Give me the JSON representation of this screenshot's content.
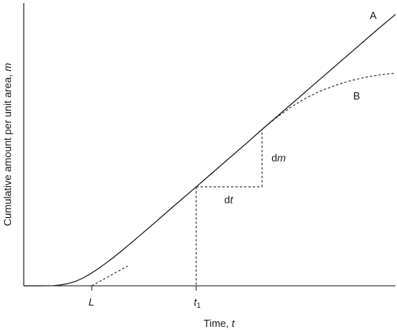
{
  "chart_data": {
    "type": "line",
    "xlabel": {
      "text": "Time, ",
      "var": "t"
    },
    "ylabel": {
      "text": "Cumulative amount per unit area, ",
      "var": "m"
    },
    "xlim": [
      0,
      100
    ],
    "ylim": [
      0,
      100
    ],
    "x_ticks": [
      {
        "label": "L",
        "value": 18.3
      },
      {
        "label": "t",
        "sub": "1",
        "value": 46.4
      }
    ],
    "series": [
      {
        "name": "A",
        "style": "solid",
        "x": [
          0,
          4,
          8,
          10,
          12,
          14,
          16,
          18,
          20,
          22,
          24,
          26,
          28,
          30,
          35,
          40,
          46.4,
          50,
          55,
          60,
          64.1,
          70,
          75,
          80,
          85,
          90,
          95,
          100
        ],
        "y": [
          0,
          0,
          0.05,
          0.3,
          0.8,
          1.6,
          2.8,
          4.3,
          6.0,
          7.9,
          9.9,
          12.0,
          14.2,
          16.4,
          22.0,
          27.8,
          35.0,
          39.1,
          44.8,
          50.5,
          55.3,
          62.0,
          67.7,
          73.4,
          79.1,
          84.8,
          90.5,
          96.0
        ]
      },
      {
        "name": "B",
        "style": "dashed",
        "x": [
          64.1,
          68,
          72,
          76,
          80,
          84,
          88,
          92,
          96,
          100
        ],
        "y": [
          55.3,
          59.5,
          63.3,
          66.5,
          69.0,
          71.0,
          72.6,
          73.8,
          74.7,
          75.2
        ]
      }
    ],
    "lag_tangent": {
      "x": [
        18.3,
        28.0
      ],
      "y": [
        0,
        7.0
      ]
    },
    "increment": {
      "x1": 46.4,
      "y1": 35.0,
      "x2": 64.1,
      "y2": 55.3,
      "dt_label": {
        "text": "d",
        "var": "t"
      },
      "dm_label": {
        "text": "d",
        "var": "m"
      }
    }
  }
}
